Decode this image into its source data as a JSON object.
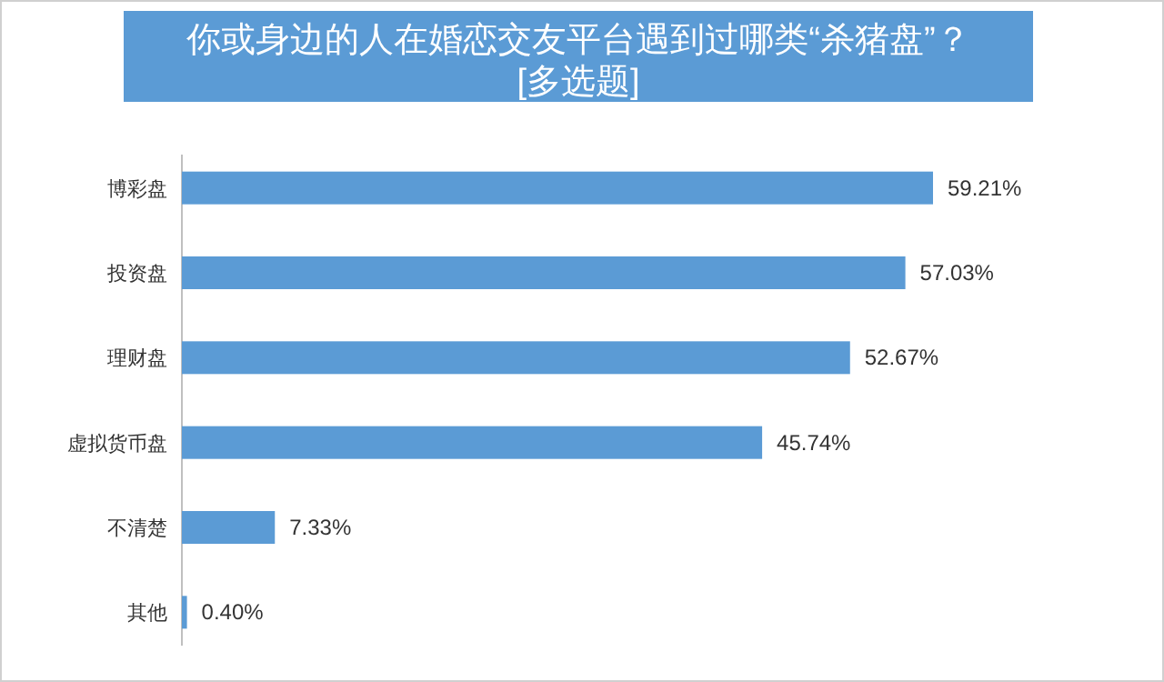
{
  "chart_data": {
    "type": "bar",
    "orientation": "horizontal",
    "title": "你或身边的人在婚恋交友平台遇到过哪类“杀猪盘”？",
    "subtitle": "[多选题]",
    "categories": [
      "博彩盘",
      "投资盘",
      "理财盘",
      "虚拟货币盘",
      "不清楚",
      "其他"
    ],
    "values": [
      59.21,
      57.03,
      52.67,
      45.74,
      7.33,
      0.4
    ],
    "color": "#5b9bd5",
    "value_labels": [
      "59.21%",
      "57.03%",
      "52.67%",
      "45.74%",
      "7.33%",
      "0.40%"
    ]
  }
}
